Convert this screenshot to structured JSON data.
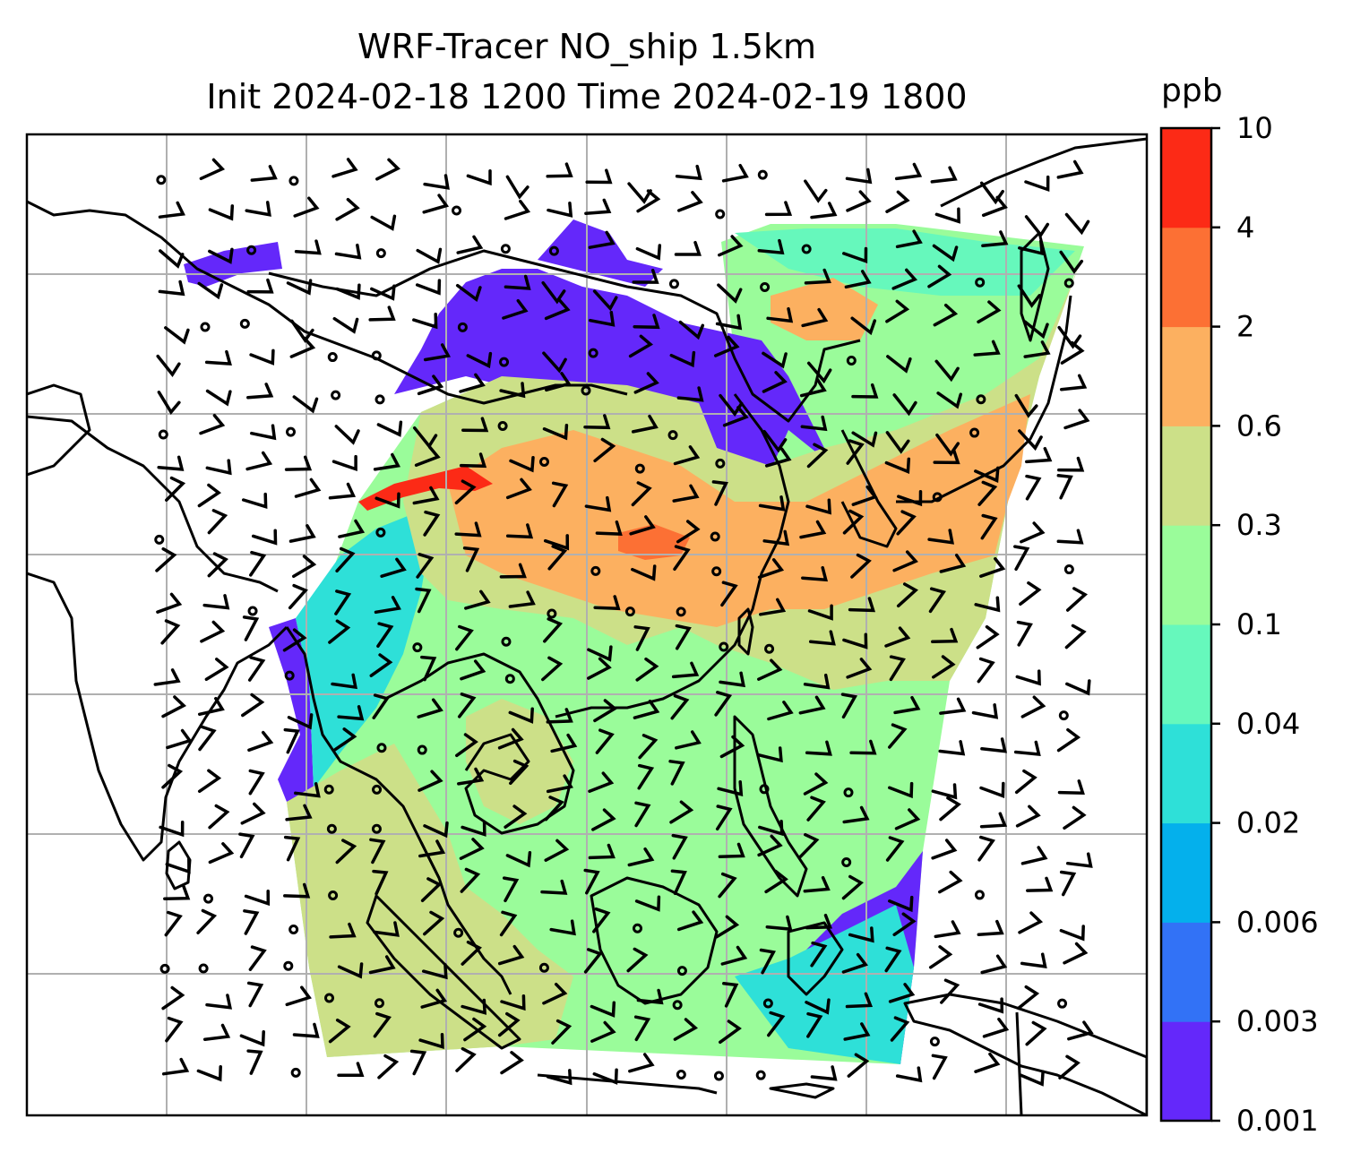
{
  "title_line1": "WRF-Tracer NO_ship 1.5km",
  "title_line2": "Init 2024-02-18 1200 Time 2024-02-19 1800",
  "colorbar": {
    "unit": "ppb",
    "levels": [
      "0.001",
      "0.003",
      "0.006",
      "0.02",
      "0.04",
      "0.1",
      "0.3",
      "0.6",
      "2",
      "4",
      "10"
    ],
    "colors": [
      "#6428fa",
      "#3272f6",
      "#04b0ec",
      "#2ee0d8",
      "#66f8bc",
      "#9afc9a",
      "#cce088",
      "#fcb060",
      "#fc7034",
      "#fc2a16"
    ]
  },
  "map_style": {
    "coastline_color": "#000000",
    "gridline_color": "#b0b0b0",
    "barb_color": "#000000",
    "ocean_color": "#ffffff"
  }
}
